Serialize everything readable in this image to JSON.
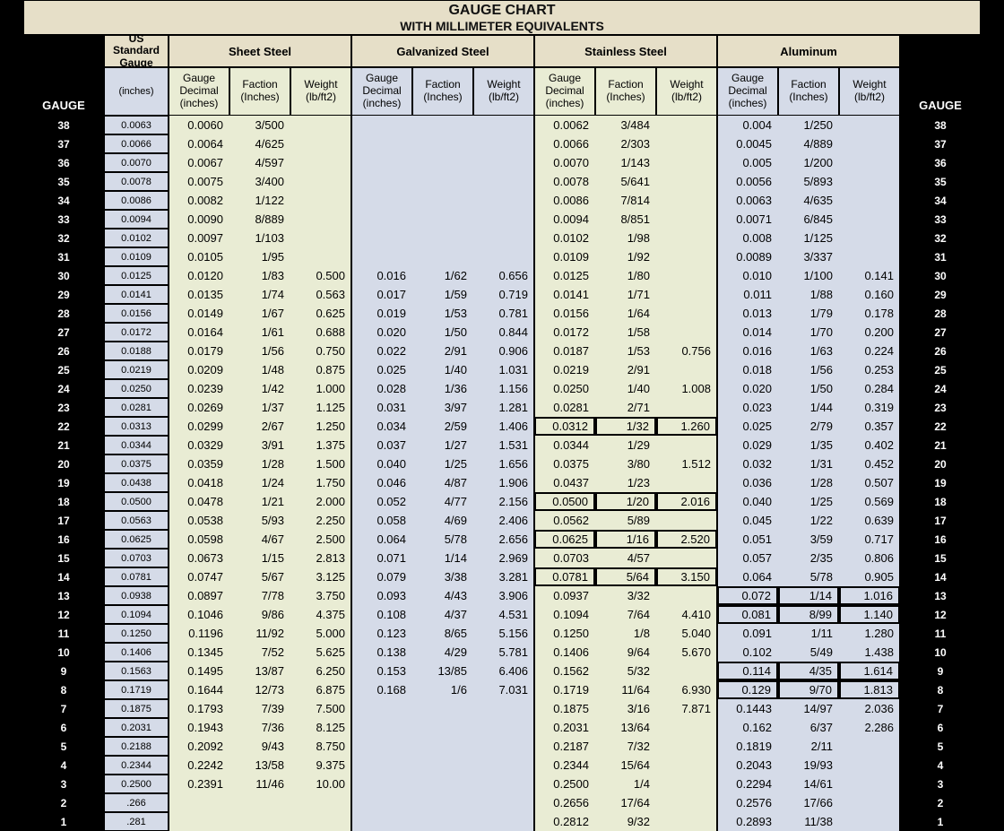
{
  "title1": "GAUGE CHART",
  "title2": "WITH MILLIMETER EQUIVALENTS",
  "side_label": "GAUGE",
  "colors": {
    "title_bg": "#e6dfc8",
    "group_green": "#e9ecd4",
    "group_blue": "#d5dbe8",
    "black": "#000000",
    "white": "#ffffff"
  },
  "materials": [
    {
      "key": "us",
      "label": "US Standard\nGauge",
      "sub": [
        "(inches)"
      ]
    },
    {
      "key": "ss",
      "label": "Sheet Steel",
      "sub": [
        "Gauge\nDecimal\n(inches)",
        "Faction\n(Inches)",
        "Weight\n(lb/ft2)"
      ]
    },
    {
      "key": "gs",
      "label": "Galvanized Steel",
      "sub": [
        "Gauge\nDecimal\n(inches)",
        "Faction\n(Inches)",
        "Weight\n(lb/ft2)"
      ]
    },
    {
      "key": "st",
      "label": "Stainless Steel",
      "sub": [
        "Gauge\nDecimal\n(inches)",
        "Faction\n(Inches)",
        "Weight\n(lb/ft2)"
      ]
    },
    {
      "key": "al",
      "label": "Aluminum",
      "sub": [
        "Gauge\nDecimal\n(inches)",
        "Faction\n(Inches)",
        "Weight\n(lb/ft2)"
      ]
    }
  ],
  "highlight_stainless_gauges": [
    22,
    18,
    16,
    14
  ],
  "highlight_aluminum_gauges": [
    13,
    12,
    9,
    8
  ],
  "rows": [
    {
      "g": 38,
      "us": "0.0063",
      "ss": [
        "0.0060",
        "3/500",
        ""
      ],
      "gs": [
        "",
        "",
        ""
      ],
      "st": [
        "0.0062",
        "3/484",
        ""
      ],
      "al": [
        "0.004",
        "1/250",
        ""
      ]
    },
    {
      "g": 37,
      "us": "0.0066",
      "ss": [
        "0.0064",
        "4/625",
        ""
      ],
      "gs": [
        "",
        "",
        ""
      ],
      "st": [
        "0.0066",
        "2/303",
        ""
      ],
      "al": [
        "0.0045",
        "4/889",
        ""
      ]
    },
    {
      "g": 36,
      "us": "0.0070",
      "ss": [
        "0.0067",
        "4/597",
        ""
      ],
      "gs": [
        "",
        "",
        ""
      ],
      "st": [
        "0.0070",
        "1/143",
        ""
      ],
      "al": [
        "0.005",
        "1/200",
        ""
      ]
    },
    {
      "g": 35,
      "us": "0.0078",
      "ss": [
        "0.0075",
        "3/400",
        ""
      ],
      "gs": [
        "",
        "",
        ""
      ],
      "st": [
        "0.0078",
        "5/641",
        ""
      ],
      "al": [
        "0.0056",
        "5/893",
        ""
      ]
    },
    {
      "g": 34,
      "us": "0.0086",
      "ss": [
        "0.0082",
        "1/122",
        ""
      ],
      "gs": [
        "",
        "",
        ""
      ],
      "st": [
        "0.0086",
        "7/814",
        ""
      ],
      "al": [
        "0.0063",
        "4/635",
        ""
      ]
    },
    {
      "g": 33,
      "us": "0.0094",
      "ss": [
        "0.0090",
        "8/889",
        ""
      ],
      "gs": [
        "",
        "",
        ""
      ],
      "st": [
        "0.0094",
        "8/851",
        ""
      ],
      "al": [
        "0.0071",
        "6/845",
        ""
      ]
    },
    {
      "g": 32,
      "us": "0.0102",
      "ss": [
        "0.0097",
        "1/103",
        ""
      ],
      "gs": [
        "",
        "",
        ""
      ],
      "st": [
        "0.0102",
        "1/98",
        ""
      ],
      "al": [
        "0.008",
        "1/125",
        ""
      ]
    },
    {
      "g": 31,
      "us": "0.0109",
      "ss": [
        "0.0105",
        "1/95",
        ""
      ],
      "gs": [
        "",
        "",
        ""
      ],
      "st": [
        "0.0109",
        "1/92",
        ""
      ],
      "al": [
        "0.0089",
        "3/337",
        ""
      ]
    },
    {
      "g": 30,
      "us": "0.0125",
      "ss": [
        "0.0120",
        "1/83",
        "0.500"
      ],
      "gs": [
        "0.016",
        "1/62",
        "0.656"
      ],
      "st": [
        "0.0125",
        "1/80",
        ""
      ],
      "al": [
        "0.010",
        "1/100",
        "0.141"
      ]
    },
    {
      "g": 29,
      "us": "0.0141",
      "ss": [
        "0.0135",
        "1/74",
        "0.563"
      ],
      "gs": [
        "0.017",
        "1/59",
        "0.719"
      ],
      "st": [
        "0.0141",
        "1/71",
        ""
      ],
      "al": [
        "0.011",
        "1/88",
        "0.160"
      ]
    },
    {
      "g": 28,
      "us": "0.0156",
      "ss": [
        "0.0149",
        "1/67",
        "0.625"
      ],
      "gs": [
        "0.019",
        "1/53",
        "0.781"
      ],
      "st": [
        "0.0156",
        "1/64",
        ""
      ],
      "al": [
        "0.013",
        "1/79",
        "0.178"
      ]
    },
    {
      "g": 27,
      "us": "0.0172",
      "ss": [
        "0.0164",
        "1/61",
        "0.688"
      ],
      "gs": [
        "0.020",
        "1/50",
        "0.844"
      ],
      "st": [
        "0.0172",
        "1/58",
        ""
      ],
      "al": [
        "0.014",
        "1/70",
        "0.200"
      ]
    },
    {
      "g": 26,
      "us": "0.0188",
      "ss": [
        "0.0179",
        "1/56",
        "0.750"
      ],
      "gs": [
        "0.022",
        "2/91",
        "0.906"
      ],
      "st": [
        "0.0187",
        "1/53",
        "0.756"
      ],
      "al": [
        "0.016",
        "1/63",
        "0.224"
      ]
    },
    {
      "g": 25,
      "us": "0.0219",
      "ss": [
        "0.0209",
        "1/48",
        "0.875"
      ],
      "gs": [
        "0.025",
        "1/40",
        "1.031"
      ],
      "st": [
        "0.0219",
        "2/91",
        ""
      ],
      "al": [
        "0.018",
        "1/56",
        "0.253"
      ]
    },
    {
      "g": 24,
      "us": "0.0250",
      "ss": [
        "0.0239",
        "1/42",
        "1.000"
      ],
      "gs": [
        "0.028",
        "1/36",
        "1.156"
      ],
      "st": [
        "0.0250",
        "1/40",
        "1.008"
      ],
      "al": [
        "0.020",
        "1/50",
        "0.284"
      ]
    },
    {
      "g": 23,
      "us": "0.0281",
      "ss": [
        "0.0269",
        "1/37",
        "1.125"
      ],
      "gs": [
        "0.031",
        "3/97",
        "1.281"
      ],
      "st": [
        "0.0281",
        "2/71",
        ""
      ],
      "al": [
        "0.023",
        "1/44",
        "0.319"
      ]
    },
    {
      "g": 22,
      "us": "0.0313",
      "ss": [
        "0.0299",
        "2/67",
        "1.250"
      ],
      "gs": [
        "0.034",
        "2/59",
        "1.406"
      ],
      "st": [
        "0.0312",
        "1/32",
        "1.260"
      ],
      "al": [
        "0.025",
        "2/79",
        "0.357"
      ]
    },
    {
      "g": 21,
      "us": "0.0344",
      "ss": [
        "0.0329",
        "3/91",
        "1.375"
      ],
      "gs": [
        "0.037",
        "1/27",
        "1.531"
      ],
      "st": [
        "0.0344",
        "1/29",
        ""
      ],
      "al": [
        "0.029",
        "1/35",
        "0.402"
      ]
    },
    {
      "g": 20,
      "us": "0.0375",
      "ss": [
        "0.0359",
        "1/28",
        "1.500"
      ],
      "gs": [
        "0.040",
        "1/25",
        "1.656"
      ],
      "st": [
        "0.0375",
        "3/80",
        "1.512"
      ],
      "al": [
        "0.032",
        "1/31",
        "0.452"
      ]
    },
    {
      "g": 19,
      "us": "0.0438",
      "ss": [
        "0.0418",
        "1/24",
        "1.750"
      ],
      "gs": [
        "0.046",
        "4/87",
        "1.906"
      ],
      "st": [
        "0.0437",
        "1/23",
        ""
      ],
      "al": [
        "0.036",
        "1/28",
        "0.507"
      ]
    },
    {
      "g": 18,
      "us": "0.0500",
      "ss": [
        "0.0478",
        "1/21",
        "2.000"
      ],
      "gs": [
        "0.052",
        "4/77",
        "2.156"
      ],
      "st": [
        "0.0500",
        "1/20",
        "2.016"
      ],
      "al": [
        "0.040",
        "1/25",
        "0.569"
      ]
    },
    {
      "g": 17,
      "us": "0.0563",
      "ss": [
        "0.0538",
        "5/93",
        "2.250"
      ],
      "gs": [
        "0.058",
        "4/69",
        "2.406"
      ],
      "st": [
        "0.0562",
        "5/89",
        ""
      ],
      "al": [
        "0.045",
        "1/22",
        "0.639"
      ]
    },
    {
      "g": 16,
      "us": "0.0625",
      "ss": [
        "0.0598",
        "4/67",
        "2.500"
      ],
      "gs": [
        "0.064",
        "5/78",
        "2.656"
      ],
      "st": [
        "0.0625",
        "1/16",
        "2.520"
      ],
      "al": [
        "0.051",
        "3/59",
        "0.717"
      ]
    },
    {
      "g": 15,
      "us": "0.0703",
      "ss": [
        "0.0673",
        "1/15",
        "2.813"
      ],
      "gs": [
        "0.071",
        "1/14",
        "2.969"
      ],
      "st": [
        "0.0703",
        "4/57",
        ""
      ],
      "al": [
        "0.057",
        "2/35",
        "0.806"
      ]
    },
    {
      "g": 14,
      "us": "0.0781",
      "ss": [
        "0.0747",
        "5/67",
        "3.125"
      ],
      "gs": [
        "0.079",
        "3/38",
        "3.281"
      ],
      "st": [
        "0.0781",
        "5/64",
        "3.150"
      ],
      "al": [
        "0.064",
        "5/78",
        "0.905"
      ]
    },
    {
      "g": 13,
      "us": "0.0938",
      "ss": [
        "0.0897",
        "7/78",
        "3.750"
      ],
      "gs": [
        "0.093",
        "4/43",
        "3.906"
      ],
      "st": [
        "0.0937",
        "3/32",
        ""
      ],
      "al": [
        "0.072",
        "1/14",
        "1.016"
      ]
    },
    {
      "g": 12,
      "us": "0.1094",
      "ss": [
        "0.1046",
        "9/86",
        "4.375"
      ],
      "gs": [
        "0.108",
        "4/37",
        "4.531"
      ],
      "st": [
        "0.1094",
        "7/64",
        "4.410"
      ],
      "al": [
        "0.081",
        "8/99",
        "1.140"
      ]
    },
    {
      "g": 11,
      "us": "0.1250",
      "ss": [
        "0.1196",
        "11/92",
        "5.000"
      ],
      "gs": [
        "0.123",
        "8/65",
        "5.156"
      ],
      "st": [
        "0.1250",
        "1/8",
        "5.040"
      ],
      "al": [
        "0.091",
        "1/11",
        "1.280"
      ]
    },
    {
      "g": 10,
      "us": "0.1406",
      "ss": [
        "0.1345",
        "7/52",
        "5.625"
      ],
      "gs": [
        "0.138",
        "4/29",
        "5.781"
      ],
      "st": [
        "0.1406",
        "9/64",
        "5.670"
      ],
      "al": [
        "0.102",
        "5/49",
        "1.438"
      ]
    },
    {
      "g": 9,
      "us": "0.1563",
      "ss": [
        "0.1495",
        "13/87",
        "6.250"
      ],
      "gs": [
        "0.153",
        "13/85",
        "6.406"
      ],
      "st": [
        "0.1562",
        "5/32",
        ""
      ],
      "al": [
        "0.114",
        "4/35",
        "1.614"
      ]
    },
    {
      "g": 8,
      "us": "0.1719",
      "ss": [
        "0.1644",
        "12/73",
        "6.875"
      ],
      "gs": [
        "0.168",
        "1/6",
        "7.031"
      ],
      "st": [
        "0.1719",
        "11/64",
        "6.930"
      ],
      "al": [
        "0.129",
        "9/70",
        "1.813"
      ]
    },
    {
      "g": 7,
      "us": "0.1875",
      "ss": [
        "0.1793",
        "7/39",
        "7.500"
      ],
      "gs": [
        "",
        "",
        ""
      ],
      "st": [
        "0.1875",
        "3/16",
        "7.871"
      ],
      "al": [
        "0.1443",
        "14/97",
        "2.036"
      ]
    },
    {
      "g": 6,
      "us": "0.2031",
      "ss": [
        "0.1943",
        "7/36",
        "8.125"
      ],
      "gs": [
        "",
        "",
        ""
      ],
      "st": [
        "0.2031",
        "13/64",
        ""
      ],
      "al": [
        "0.162",
        "6/37",
        "2.286"
      ]
    },
    {
      "g": 5,
      "us": "0.2188",
      "ss": [
        "0.2092",
        "9/43",
        "8.750"
      ],
      "gs": [
        "",
        "",
        ""
      ],
      "st": [
        "0.2187",
        "7/32",
        ""
      ],
      "al": [
        "0.1819",
        "2/11",
        ""
      ]
    },
    {
      "g": 4,
      "us": "0.2344",
      "ss": [
        "0.2242",
        "13/58",
        "9.375"
      ],
      "gs": [
        "",
        "",
        ""
      ],
      "st": [
        "0.2344",
        "15/64",
        ""
      ],
      "al": [
        "0.2043",
        "19/93",
        ""
      ]
    },
    {
      "g": 3,
      "us": "0.2500",
      "ss": [
        "0.2391",
        "11/46",
        "10.00"
      ],
      "gs": [
        "",
        "",
        ""
      ],
      "st": [
        "0.2500",
        "1/4",
        ""
      ],
      "al": [
        "0.2294",
        "14/61",
        ""
      ]
    },
    {
      "g": 2,
      "us": ".266",
      "ss": [
        "",
        "",
        ""
      ],
      "gs": [
        "",
        "",
        ""
      ],
      "st": [
        "0.2656",
        "17/64",
        ""
      ],
      "al": [
        "0.2576",
        "17/66",
        ""
      ]
    },
    {
      "g": 1,
      "us": ".281",
      "ss": [
        "",
        "",
        ""
      ],
      "gs": [
        "",
        "",
        ""
      ],
      "st": [
        "0.2812",
        "9/32",
        ""
      ],
      "al": [
        "0.2893",
        "11/38",
        ""
      ]
    }
  ]
}
